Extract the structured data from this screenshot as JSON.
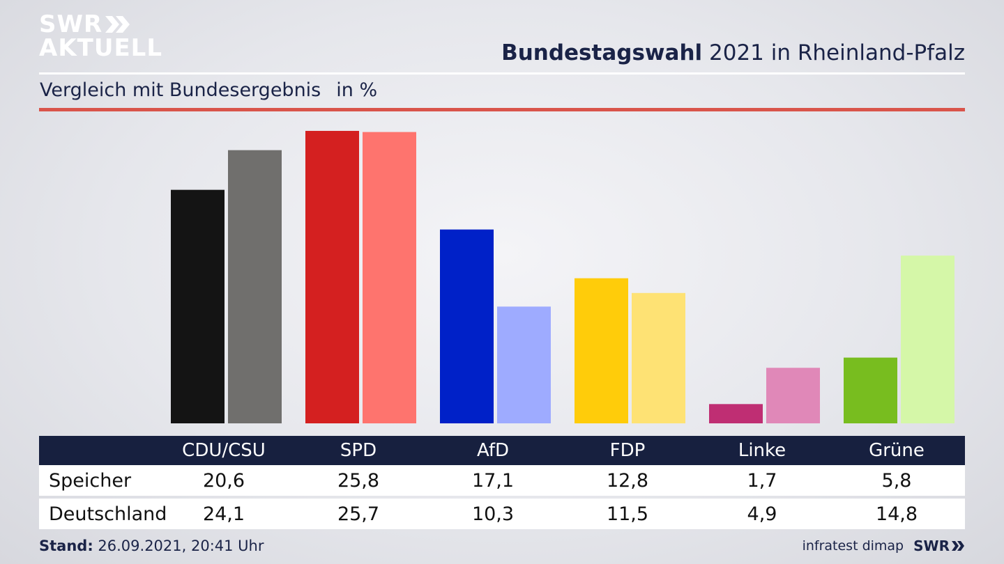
{
  "logo": {
    "line1": "SWR",
    "line2": "AKTUELL"
  },
  "header": {
    "title_bold": "Bundestagswahl",
    "title_rest": " 2021 in Rheinland-Pfalz",
    "subtitle": "Vergleich mit Bundesergebnis",
    "unit": "in %"
  },
  "colors": {
    "navy": "#17203f",
    "accent_red": "#d9544a"
  },
  "chart_data": {
    "type": "bar",
    "categories": [
      "CDU/CSU",
      "SPD",
      "AfD",
      "FDP",
      "Linke",
      "Grüne"
    ],
    "series": [
      {
        "name": "Speicher",
        "values": [
          20.6,
          25.8,
          17.1,
          12.8,
          1.7,
          5.8
        ],
        "colors": [
          "#141414",
          "#d42020",
          "#0021c8",
          "#ffcc0a",
          "#bf2e73",
          "#78bd1f"
        ]
      },
      {
        "name": "Deutschland",
        "values": [
          24.1,
          25.7,
          10.3,
          11.5,
          4.9,
          14.8
        ],
        "colors": [
          "#706f6d",
          "#fe746e",
          "#9eabff",
          "#fee274",
          "#e088b8",
          "#d5f7a8"
        ]
      }
    ],
    "value_format": "decimal-comma"
  },
  "table": {
    "rows": [
      {
        "label": "Speicher",
        "values": [
          "20,6",
          "25,8",
          "17,1",
          "12,8",
          "1,7",
          "5,8"
        ]
      },
      {
        "label": "Deutschland",
        "values": [
          "24,1",
          "25,7",
          "10,3",
          "11,5",
          "4,9",
          "14,8"
        ]
      }
    ]
  },
  "footer": {
    "stand_label": "Stand:",
    "stand_value": " 26.09.2021, 20:41 Uhr",
    "source": "infratest dimap",
    "brand": "SWR"
  }
}
